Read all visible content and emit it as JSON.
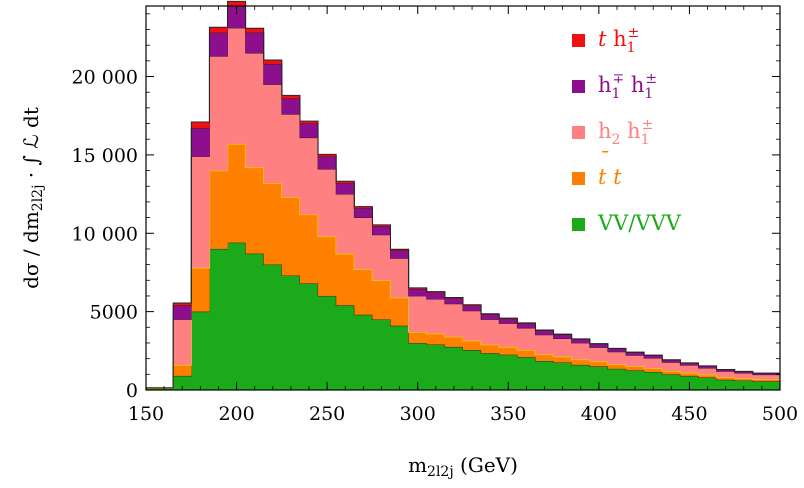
{
  "chart_data": {
    "type": "area",
    "title": "",
    "xlabel_main": "m",
    "xlabel_sub": "2l2j",
    "xlabel_unit": "(GeV)",
    "ylabel_main": "dσ / dm",
    "ylabel_sub": "2l2j",
    "ylabel_tail": " · ∫ ℒ dt",
    "xlim": [
      150,
      500
    ],
    "ylim": [
      0,
      24500
    ],
    "xticks": [
      150,
      200,
      250,
      300,
      350,
      400,
      450,
      500
    ],
    "xtick_labels": [
      "150",
      "200",
      "250",
      "300",
      "350",
      "400",
      "450",
      "500"
    ],
    "yticks": [
      0,
      5000,
      10000,
      15000,
      20000
    ],
    "ytick_labels": [
      "0",
      "5000",
      "10 000",
      "15 000",
      "20 000"
    ],
    "grid": false,
    "legend_position": "top-right",
    "bin_edges": [
      150,
      165,
      175,
      185,
      195,
      205,
      215,
      225,
      235,
      245,
      255,
      265,
      275,
      285,
      295,
      305,
      315,
      325,
      335,
      345,
      355,
      365,
      375,
      385,
      395,
      405,
      415,
      425,
      435,
      445,
      455,
      465,
      475,
      485,
      500
    ],
    "series": [
      {
        "name": "VV/VVV",
        "color": "#1aaa1a",
        "values": [
          100,
          900,
          5000,
          9000,
          9400,
          8700,
          8000,
          7300,
          6800,
          6000,
          5400,
          4800,
          4500,
          4100,
          3000,
          2900,
          2750,
          2550,
          2350,
          2250,
          2100,
          1850,
          1750,
          1600,
          1500,
          1350,
          1250,
          1150,
          1000,
          900,
          800,
          650,
          600,
          550
        ]
      },
      {
        "name": "t t",
        "color": "#ff8000",
        "values": [
          20,
          700,
          2800,
          5000,
          6300,
          5500,
          5200,
          5000,
          4400,
          3800,
          3300,
          2900,
          2500,
          1800,
          700,
          700,
          650,
          600,
          550,
          500,
          450,
          420,
          380,
          350,
          320,
          290,
          260,
          240,
          220,
          200,
          180,
          160,
          140,
          130
        ]
      },
      {
        "name": "h2 h1±",
        "color": "#ff8080",
        "values": [
          10,
          2900,
          7100,
          7300,
          7400,
          7300,
          6300,
          5300,
          4900,
          4300,
          3800,
          3300,
          2900,
          2500,
          2300,
          2200,
          2100,
          1900,
          1600,
          1500,
          1400,
          1250,
          1150,
          1050,
          900,
          800,
          700,
          650,
          550,
          480,
          420,
          380,
          340,
          300
        ]
      },
      {
        "name": "h1∓ h1±",
        "color": "#8e0f8e",
        "values": [
          5,
          900,
          1800,
          1500,
          1400,
          1300,
          1300,
          1000,
          900,
          800,
          700,
          600,
          550,
          500,
          450,
          420,
          350,
          340,
          320,
          300,
          300,
          280,
          260,
          240,
          220,
          200,
          190,
          170,
          150,
          140,
          130,
          110,
          100,
          90
        ]
      },
      {
        "name": "t h1±",
        "color": "#ee1111",
        "values": [
          2,
          150,
          400,
          350,
          300,
          280,
          260,
          200,
          160,
          140,
          120,
          100,
          90,
          80,
          70,
          60,
          55,
          50,
          45,
          40,
          35,
          30,
          28,
          25,
          22,
          20,
          18,
          16,
          15,
          13,
          12,
          11,
          10,
          9
        ]
      }
    ]
  },
  "legend": [
    {
      "id": "th",
      "color": "#ee1111",
      "text": "t",
      "sep": " ",
      "base": "h",
      "sub": "1",
      "sup": "±"
    },
    {
      "id": "hh",
      "color": "#8e0f8e",
      "text": "",
      "sep": "",
      "base": "h",
      "sub": "1",
      "sup": "∓",
      "base2": "h",
      "sub2": "1",
      "sup2": "±"
    },
    {
      "id": "h2h1",
      "color": "#ff8080",
      "text": "",
      "sep": "",
      "base": "h",
      "sub": "2",
      "sup": "",
      "base2": "h",
      "sub2": "1",
      "sup2": "±"
    },
    {
      "id": "tt",
      "color": "#ff8000",
      "text": "t t",
      "overbar": "¯"
    },
    {
      "id": "vv",
      "color": "#1aaa1a",
      "text": "VV/VVV"
    }
  ]
}
